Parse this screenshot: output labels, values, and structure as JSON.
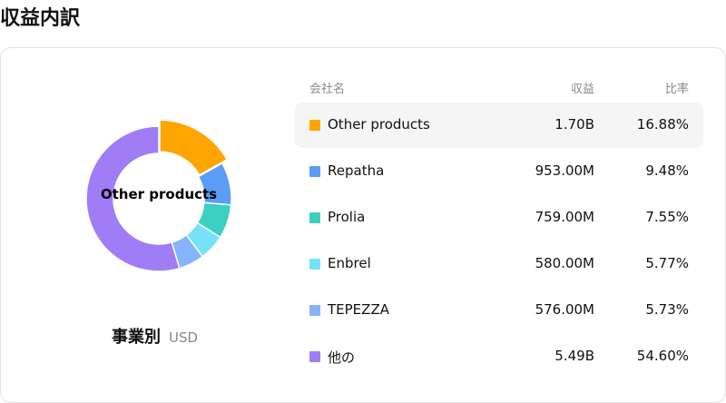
{
  "page": {
    "title": "収益内訳"
  },
  "donut": {
    "center_label": "Other products",
    "breakdown_label": "事業別",
    "currency": "USD"
  },
  "table": {
    "headers": {
      "company": "会社名",
      "revenue": "収益",
      "ratio": "比率"
    },
    "rows": [
      {
        "name": "Other products",
        "revenue": "1.70B",
        "ratio": "16.88%",
        "color": "#FFA500",
        "active": true
      },
      {
        "name": "Repatha",
        "revenue": "953.00M",
        "ratio": "9.48%",
        "color": "#5B9CF6",
        "active": false
      },
      {
        "name": "Prolia",
        "revenue": "759.00M",
        "ratio": "7.55%",
        "color": "#3DD0C0",
        "active": false
      },
      {
        "name": "Enbrel",
        "revenue": "580.00M",
        "ratio": "5.77%",
        "color": "#76E2F7",
        "active": false
      },
      {
        "name": "TEPEZZA",
        "revenue": "576.00M",
        "ratio": "5.73%",
        "color": "#86B4FA",
        "active": false
      },
      {
        "name": "他の",
        "revenue": "5.49B",
        "ratio": "54.60%",
        "color": "#A07CF6",
        "active": false
      }
    ]
  },
  "chart_data": {
    "type": "pie",
    "categories": [
      "Other products",
      "Repatha",
      "Prolia",
      "Enbrel",
      "TEPEZZA",
      "他の"
    ],
    "values": [
      16.88,
      9.48,
      7.55,
      5.77,
      5.73,
      54.6
    ],
    "colors": [
      "#FFA500",
      "#5B9CF6",
      "#3DD0C0",
      "#76E2F7",
      "#86B4FA",
      "#A07CF6"
    ],
    "highlighted": "Other products"
  }
}
